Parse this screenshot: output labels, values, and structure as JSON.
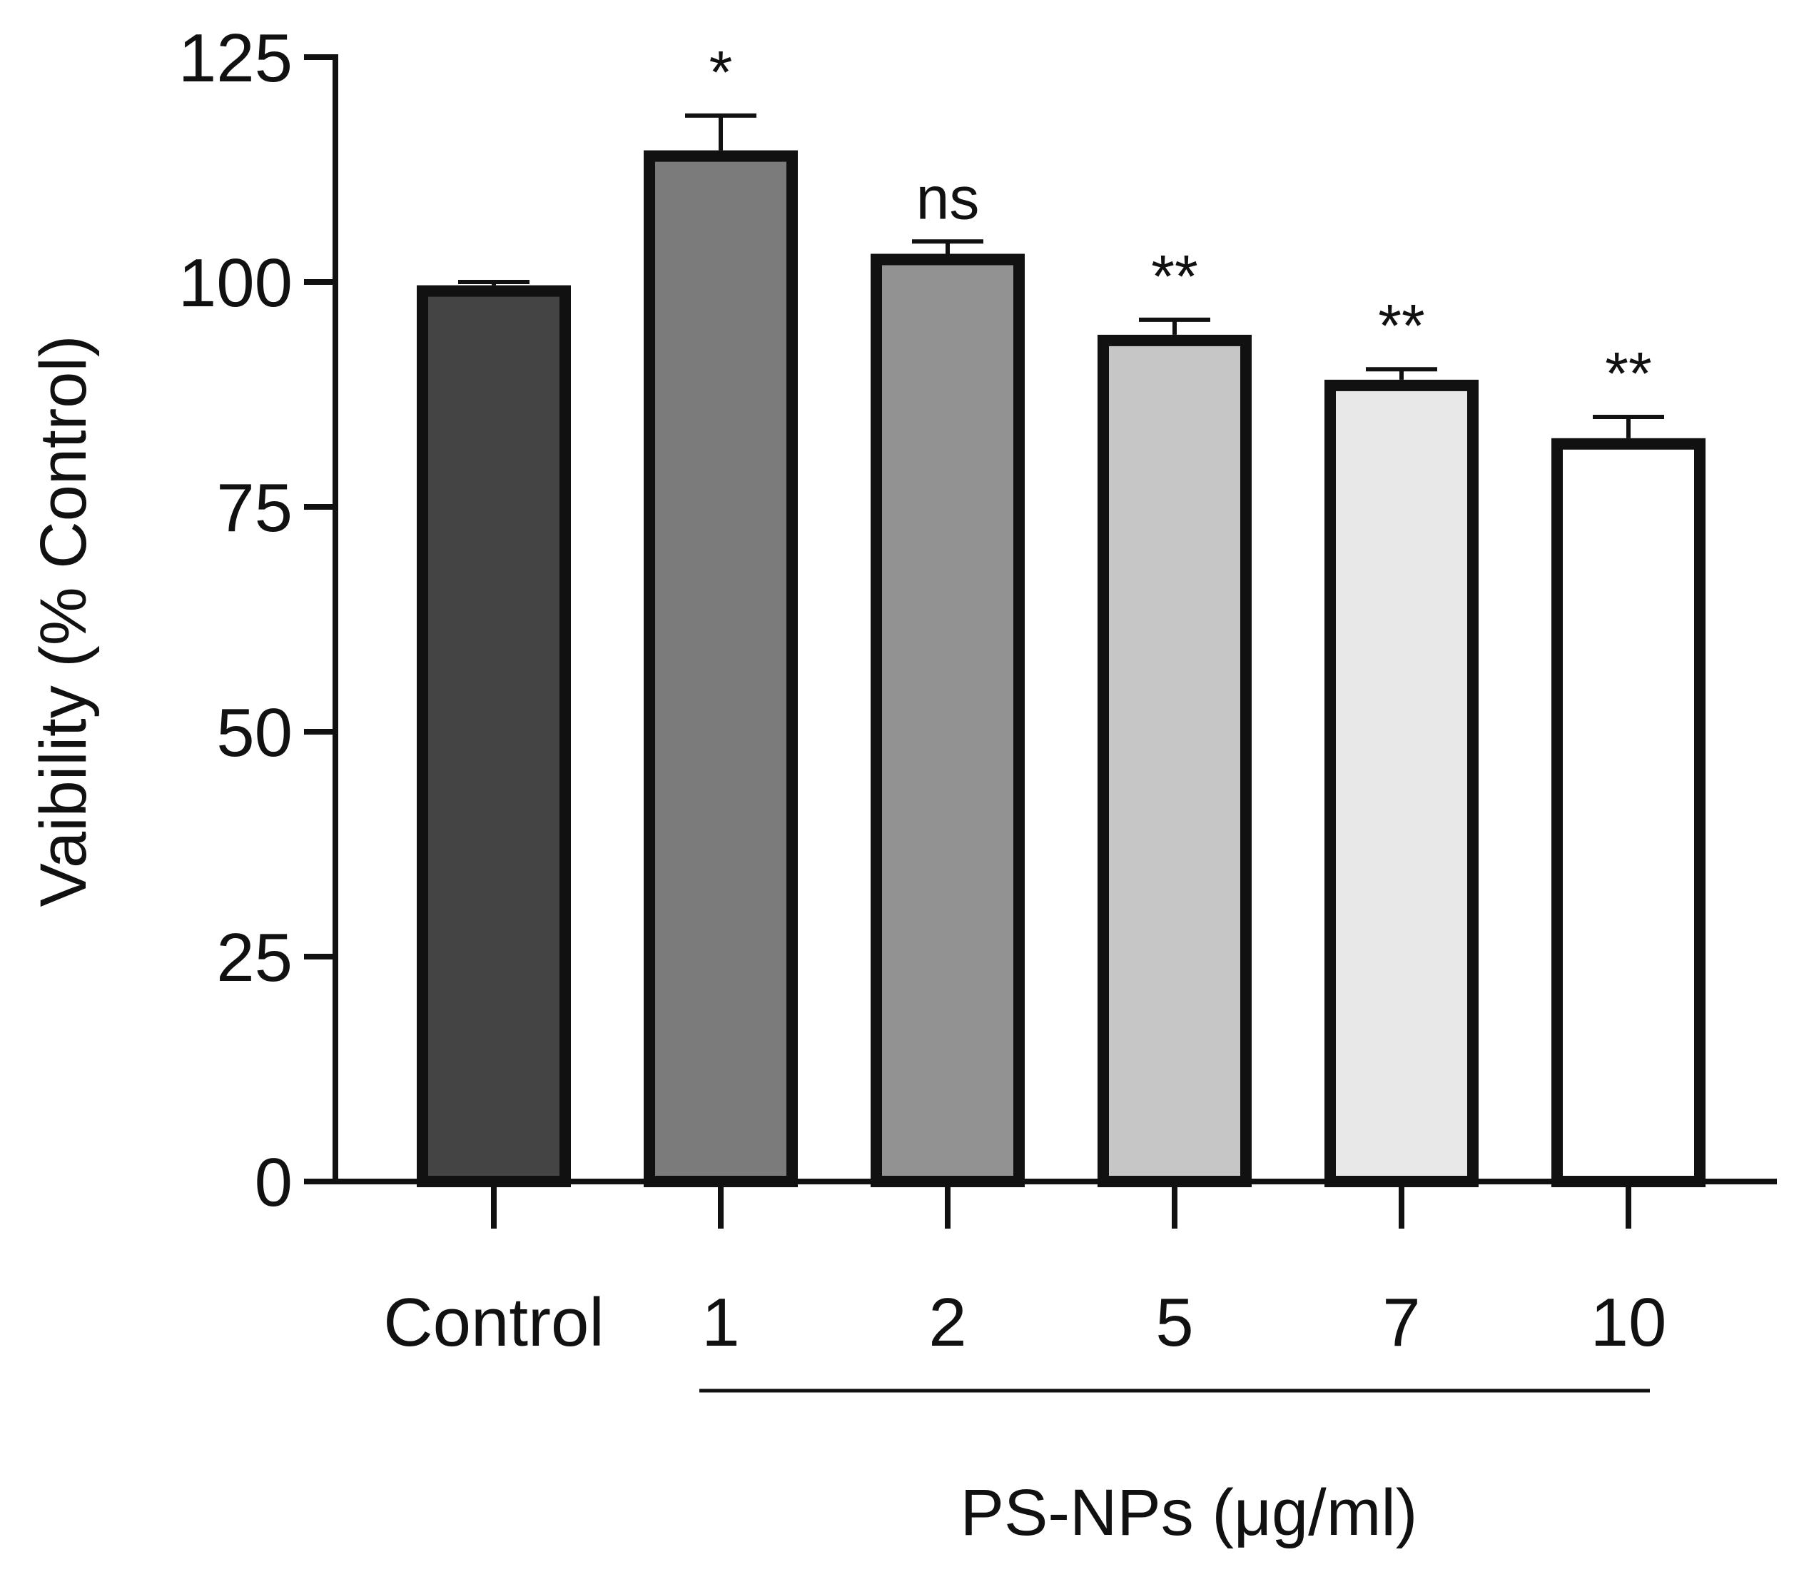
{
  "chart_data": {
    "type": "bar",
    "title": "",
    "ylabel": "Vaibility (% Control)",
    "xlabel": "PS-NPs (μg/ml)",
    "ylim": [
      0,
      125
    ],
    "yticks": [
      0,
      25,
      50,
      75,
      100,
      125
    ],
    "grid": false,
    "categories": [
      "Control",
      "1",
      "2",
      "5",
      "7",
      "10"
    ],
    "values": [
      99,
      114,
      102.5,
      93.5,
      88.5,
      82
    ],
    "errors": [
      1,
      4.5,
      2,
      2.3,
      1.8,
      3
    ],
    "significance": [
      "",
      "*",
      "ns",
      "**",
      "**",
      "**"
    ],
    "bar_colors": [
      "#444444",
      "#7b7b7b",
      "#929292",
      "#c6c6c6",
      "#e8e8e8",
      "#ffffff"
    ],
    "group_bracket": {
      "from_category": "1",
      "to_category": "10",
      "label": "PS-NPs (μg/ml)"
    }
  }
}
